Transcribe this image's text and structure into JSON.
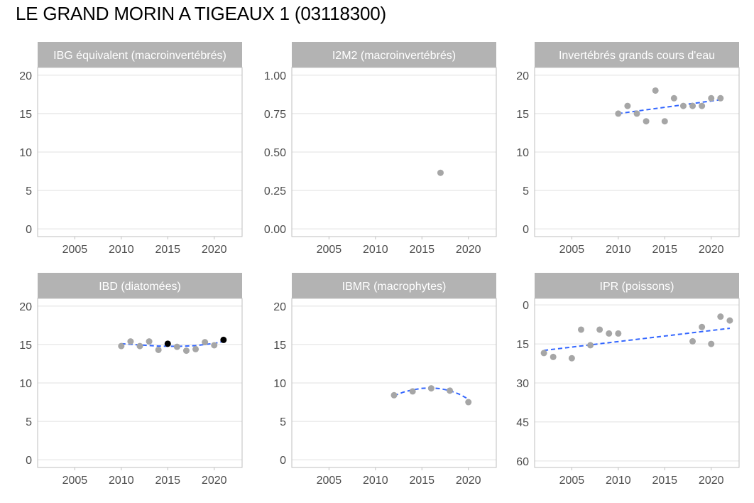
{
  "title": "LE GRAND MORIN A TIGEAUX 1 (03118300)",
  "colors": {
    "point": "#a6a6a6",
    "point_highlight": "#000000",
    "trend": "#3366ff",
    "strip": "#b3b3b3",
    "grid": "#e0e0e0",
    "border": "#bfbfbf"
  },
  "chart_data": [
    {
      "type": "scatter",
      "title": "IBG équivalent (macroinvertébrés)",
      "xlim": [
        2001,
        2023
      ],
      "ylim": [
        -1,
        21
      ],
      "xticks": [
        2005,
        2010,
        2015,
        2020
      ],
      "yticks": [
        0,
        5,
        10,
        15,
        20
      ],
      "ytick_labels": [
        "0",
        "5",
        "10",
        "15",
        "20"
      ],
      "reverse_y": false,
      "points": [],
      "trend": []
    },
    {
      "type": "scatter",
      "title": "I2M2 (macroinvertébrés)",
      "xlim": [
        2001,
        2023
      ],
      "ylim": [
        -0.05,
        1.05
      ],
      "xticks": [
        2005,
        2010,
        2015,
        2020
      ],
      "yticks": [
        0,
        0.25,
        0.5,
        0.75,
        1.0
      ],
      "ytick_labels": [
        "0.00",
        "0.25",
        "0.50",
        "0.75",
        "1.00"
      ],
      "reverse_y": false,
      "points": [
        {
          "x": 2017,
          "y": 0.365,
          "highlight": false
        }
      ],
      "trend": []
    },
    {
      "type": "scatter",
      "title": "Invertébrés grands cours d'eau",
      "xlim": [
        2001,
        2023
      ],
      "ylim": [
        -1,
        21
      ],
      "xticks": [
        2005,
        2010,
        2015,
        2020
      ],
      "yticks": [
        0,
        5,
        10,
        15,
        20
      ],
      "ytick_labels": [
        "0",
        "5",
        "10",
        "15",
        "20"
      ],
      "reverse_y": false,
      "points": [
        {
          "x": 2010,
          "y": 15,
          "highlight": false
        },
        {
          "x": 2011,
          "y": 16,
          "highlight": false
        },
        {
          "x": 2012,
          "y": 15,
          "highlight": false
        },
        {
          "x": 2013,
          "y": 14,
          "highlight": false
        },
        {
          "x": 2014,
          "y": 18,
          "highlight": false
        },
        {
          "x": 2015,
          "y": 14,
          "highlight": false
        },
        {
          "x": 2016,
          "y": 17,
          "highlight": false
        },
        {
          "x": 2017,
          "y": 16,
          "highlight": false
        },
        {
          "x": 2018,
          "y": 16,
          "highlight": false
        },
        {
          "x": 2019,
          "y": 16,
          "highlight": false
        },
        {
          "x": 2020,
          "y": 17,
          "highlight": false
        },
        {
          "x": 2021,
          "y": 17,
          "highlight": false
        }
      ],
      "trend": [
        {
          "x": 2010,
          "y": 15.0
        },
        {
          "x": 2021,
          "y": 16.8
        }
      ]
    },
    {
      "type": "scatter",
      "title": "IBD (diatomées)",
      "xlim": [
        2001,
        2023
      ],
      "ylim": [
        -1,
        21
      ],
      "xticks": [
        2005,
        2010,
        2015,
        2020
      ],
      "yticks": [
        0,
        5,
        10,
        15,
        20
      ],
      "ytick_labels": [
        "0",
        "5",
        "10",
        "15",
        "20"
      ],
      "reverse_y": false,
      "points": [
        {
          "x": 2010,
          "y": 14.8,
          "highlight": false
        },
        {
          "x": 2011,
          "y": 15.4,
          "highlight": false
        },
        {
          "x": 2012,
          "y": 14.8,
          "highlight": false
        },
        {
          "x": 2013,
          "y": 15.4,
          "highlight": false
        },
        {
          "x": 2014,
          "y": 14.3,
          "highlight": false
        },
        {
          "x": 2015,
          "y": 15.1,
          "highlight": true
        },
        {
          "x": 2016,
          "y": 14.7,
          "highlight": false
        },
        {
          "x": 2017,
          "y": 14.2,
          "highlight": false
        },
        {
          "x": 2018,
          "y": 14.4,
          "highlight": false
        },
        {
          "x": 2019,
          "y": 15.3,
          "highlight": false
        },
        {
          "x": 2020,
          "y": 14.9,
          "highlight": false
        },
        {
          "x": 2021,
          "y": 15.6,
          "highlight": true
        }
      ],
      "trend": [
        {
          "x": 2010,
          "y": 15.1
        },
        {
          "x": 2012,
          "y": 14.95
        },
        {
          "x": 2014,
          "y": 14.8
        },
        {
          "x": 2016,
          "y": 14.75
        },
        {
          "x": 2018,
          "y": 14.85
        },
        {
          "x": 2020,
          "y": 15.15
        },
        {
          "x": 2021,
          "y": 15.4
        }
      ]
    },
    {
      "type": "scatter",
      "title": "IBMR (macrophytes)",
      "xlim": [
        2001,
        2023
      ],
      "ylim": [
        -1,
        21
      ],
      "xticks": [
        2005,
        2010,
        2015,
        2020
      ],
      "yticks": [
        0,
        5,
        10,
        15,
        20
      ],
      "ytick_labels": [
        "0",
        "5",
        "10",
        "15",
        "20"
      ],
      "reverse_y": false,
      "points": [
        {
          "x": 2012,
          "y": 8.4,
          "highlight": false
        },
        {
          "x": 2014,
          "y": 8.9,
          "highlight": false
        },
        {
          "x": 2016,
          "y": 9.3,
          "highlight": false
        },
        {
          "x": 2018,
          "y": 9.0,
          "highlight": false
        },
        {
          "x": 2020,
          "y": 7.5,
          "highlight": false
        }
      ],
      "trend": [
        {
          "x": 2012,
          "y": 8.35
        },
        {
          "x": 2013,
          "y": 8.8
        },
        {
          "x": 2014,
          "y": 9.1
        },
        {
          "x": 2015,
          "y": 9.3
        },
        {
          "x": 2016,
          "y": 9.35
        },
        {
          "x": 2017,
          "y": 9.25
        },
        {
          "x": 2018,
          "y": 9.0
        },
        {
          "x": 2019,
          "y": 8.55
        },
        {
          "x": 2020,
          "y": 7.9
        }
      ]
    },
    {
      "type": "scatter",
      "title": "IPR (poissons)",
      "xlim": [
        2001,
        2023
      ],
      "ylim": [
        -2.5,
        62.5
      ],
      "xticks": [
        2005,
        2010,
        2015,
        2020
      ],
      "yticks": [
        0,
        15,
        30,
        45,
        60
      ],
      "ytick_labels": [
        "0",
        "15",
        "30",
        "45",
        "60"
      ],
      "reverse_y": true,
      "points": [
        {
          "x": 2002,
          "y": 18.5,
          "highlight": false
        },
        {
          "x": 2003,
          "y": 20.0,
          "highlight": false
        },
        {
          "x": 2005,
          "y": 20.5,
          "highlight": false
        },
        {
          "x": 2006,
          "y": 9.5,
          "highlight": false
        },
        {
          "x": 2007,
          "y": 15.5,
          "highlight": false
        },
        {
          "x": 2008,
          "y": 9.5,
          "highlight": false
        },
        {
          "x": 2009,
          "y": 11.0,
          "highlight": false
        },
        {
          "x": 2010,
          "y": 11.0,
          "highlight": false
        },
        {
          "x": 2018,
          "y": 14.0,
          "highlight": false
        },
        {
          "x": 2019,
          "y": 8.5,
          "highlight": false
        },
        {
          "x": 2020,
          "y": 15.0,
          "highlight": false
        },
        {
          "x": 2021,
          "y": 4.5,
          "highlight": false
        },
        {
          "x": 2022,
          "y": 6.0,
          "highlight": false
        }
      ],
      "trend": [
        {
          "x": 2002,
          "y": 17.5
        },
        {
          "x": 2022,
          "y": 9.0
        }
      ]
    }
  ]
}
